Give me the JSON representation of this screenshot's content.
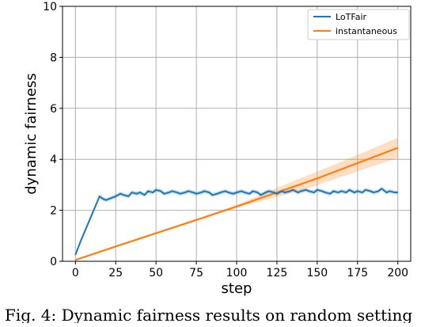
{
  "caption": "Fig. 4: Dynamic fairness results on random setting",
  "chart_data": {
    "type": "line",
    "xlabel": "step",
    "ylabel": "dynamic fairness",
    "xlim": [
      -8,
      208
    ],
    "ylim": [
      0,
      10
    ],
    "xticks": [
      0,
      25,
      50,
      75,
      100,
      125,
      150,
      175,
      200
    ],
    "yticks": [
      0,
      2,
      4,
      6,
      8,
      10
    ],
    "grid": true,
    "legend_position": "top-right",
    "series": [
      {
        "name": "LoTFair",
        "color": "#1f77b4",
        "x": [
          0,
          3,
          6,
          9,
          12,
          15,
          17,
          19,
          21,
          23,
          25,
          28,
          30,
          33,
          35,
          38,
          40,
          43,
          45,
          48,
          50,
          53,
          55,
          58,
          60,
          63,
          65,
          68,
          70,
          73,
          75,
          78,
          80,
          83,
          85,
          88,
          90,
          93,
          95,
          98,
          100,
          103,
          105,
          108,
          110,
          113,
          115,
          118,
          120,
          123,
          125,
          128,
          130,
          133,
          135,
          138,
          140,
          143,
          145,
          148,
          150,
          153,
          155,
          158,
          160,
          163,
          165,
          168,
          170,
          173,
          175,
          178,
          180,
          183,
          185,
          188,
          190,
          193,
          195,
          198,
          200
        ],
        "y": [
          0.25,
          0.75,
          1.2,
          1.65,
          2.1,
          2.55,
          2.45,
          2.4,
          2.45,
          2.5,
          2.55,
          2.65,
          2.6,
          2.55,
          2.7,
          2.65,
          2.7,
          2.6,
          2.75,
          2.7,
          2.8,
          2.75,
          2.65,
          2.7,
          2.75,
          2.7,
          2.65,
          2.7,
          2.75,
          2.7,
          2.65,
          2.7,
          2.75,
          2.7,
          2.6,
          2.65,
          2.7,
          2.75,
          2.7,
          2.65,
          2.7,
          2.75,
          2.7,
          2.65,
          2.75,
          2.7,
          2.6,
          2.7,
          2.75,
          2.7,
          2.65,
          2.75,
          2.7,
          2.75,
          2.8,
          2.7,
          2.75,
          2.8,
          2.75,
          2.7,
          2.8,
          2.75,
          2.7,
          2.65,
          2.75,
          2.7,
          2.75,
          2.7,
          2.8,
          2.7,
          2.75,
          2.7,
          2.8,
          2.75,
          2.7,
          2.75,
          2.85,
          2.7,
          2.75,
          2.7,
          2.7
        ],
        "band": 0.08
      },
      {
        "name": "instantaneous",
        "color": "#ff7f0e",
        "x": [
          0,
          25,
          50,
          75,
          100,
          125,
          150,
          175,
          200
        ],
        "y": [
          0.05,
          0.58,
          1.1,
          1.62,
          2.15,
          2.7,
          3.25,
          3.85,
          4.45
        ],
        "band_x": [
          0,
          100,
          125,
          150,
          175,
          200
        ],
        "band_width": [
          0.02,
          0.05,
          0.18,
          0.27,
          0.32,
          0.4
        ]
      }
    ]
  }
}
